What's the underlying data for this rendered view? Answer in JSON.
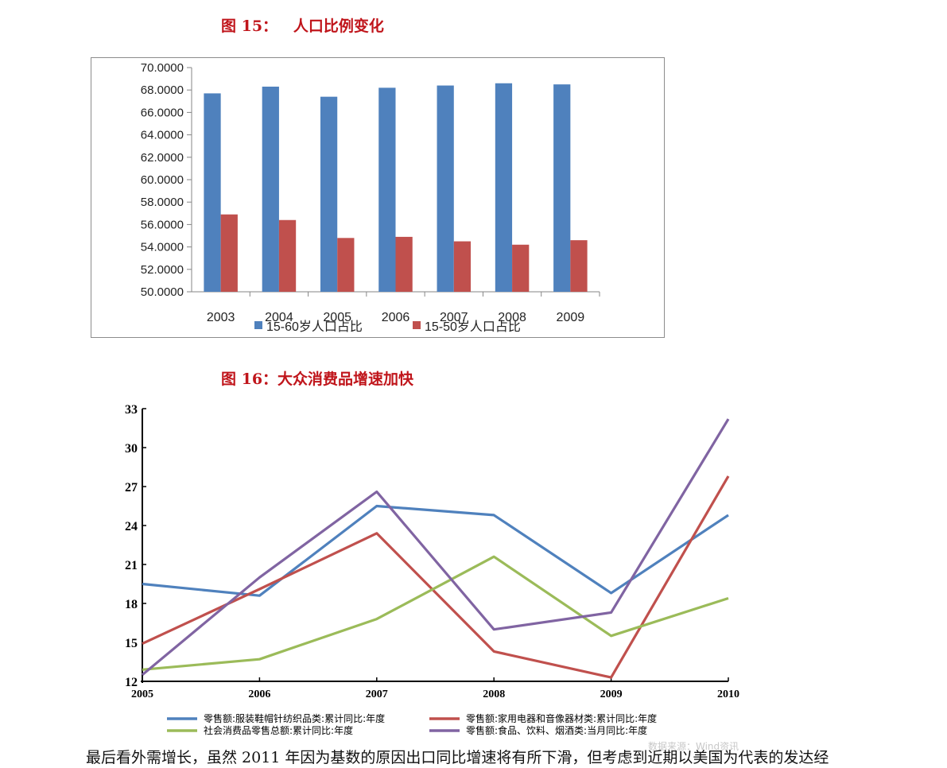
{
  "caption1": "图 15：   人口比例变化",
  "caption2": "图 16：大众消费品增速加快",
  "body_text": "最后看外需增长，虽然 2011 年因为基数的原因出口同比增速将有所下滑，但考虑到近期以美国为代表的发达经",
  "watermark": "数据来源：Wind资讯",
  "chart_data": [
    {
      "type": "bar",
      "categories": [
        "2003",
        "2004",
        "2005",
        "2006",
        "2007",
        "2008",
        "2009"
      ],
      "series": [
        {
          "name": "15-60岁人口占比",
          "color": "#4f81bd",
          "values": [
            67.7,
            68.3,
            67.4,
            68.2,
            68.4,
            68.6,
            68.5
          ]
        },
        {
          "name": "15-50岁人口占比",
          "color": "#c0504d",
          "values": [
            56.9,
            56.4,
            54.8,
            54.9,
            54.5,
            54.2,
            54.6
          ]
        }
      ],
      "yticks": [
        "50.0000",
        "52.0000",
        "54.0000",
        "56.0000",
        "58.0000",
        "60.0000",
        "62.0000",
        "64.0000",
        "66.0000",
        "68.0000",
        "70.0000"
      ],
      "ylim": [
        50,
        70
      ],
      "grid": false,
      "legend": "bottom"
    },
    {
      "type": "line",
      "x": [
        "2005",
        "2006",
        "2007",
        "2008",
        "2009",
        "2010"
      ],
      "series": [
        {
          "name": "零售额:服装鞋帽针纺织品类:累计同比:年度",
          "color": "#4f81bd",
          "values": [
            19.5,
            18.6,
            25.5,
            24.8,
            18.8,
            24.8
          ]
        },
        {
          "name": "零售额:家用电器和音像器材类:累计同比:年度",
          "color": "#c0504d",
          "values": [
            14.9,
            19.1,
            23.4,
            14.3,
            12.3,
            27.8
          ]
        },
        {
          "name": "社会消费品零售总额:累计同比:年度",
          "color": "#9bbb59",
          "values": [
            12.9,
            13.7,
            16.8,
            21.6,
            15.5,
            18.4
          ]
        },
        {
          "name": "零售额:食品、饮料、烟酒类:当月同比:年度",
          "color": "#8064a2",
          "values": [
            12.5,
            20.0,
            26.6,
            16.0,
            17.3,
            32.2
          ]
        }
      ],
      "yticks": [
        "12",
        "15",
        "18",
        "21",
        "24",
        "27",
        "30",
        "33"
      ],
      "ylim": [
        12,
        33
      ],
      "grid": false,
      "legend": "bottom"
    }
  ]
}
